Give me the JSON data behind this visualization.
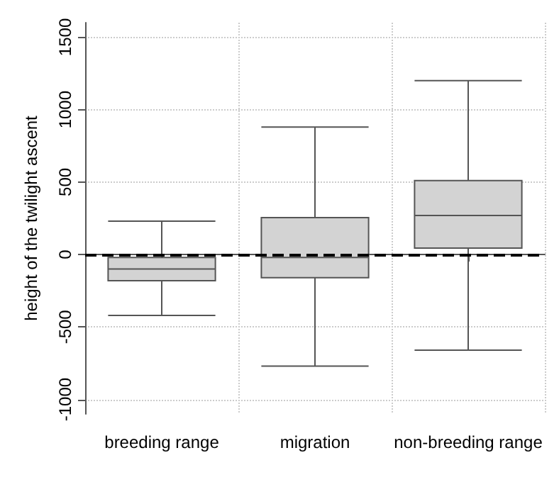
{
  "chart_data": {
    "type": "box",
    "ylabel": "height of the twilight ascent",
    "categories": [
      "breeding range",
      "migration",
      "non-breeding range"
    ],
    "boxes": [
      {
        "low": -420,
        "q1": -180,
        "median": -100,
        "q3": -20,
        "high": 230
      },
      {
        "low": -770,
        "q1": -160,
        "median": -20,
        "q3": 255,
        "high": 880
      },
      {
        "low": -660,
        "q1": 45,
        "median": 270,
        "q3": 510,
        "high": 1200
      }
    ],
    "color": "#d3d3d3",
    "ylim": [
      -1100,
      1600
    ],
    "yticks": [
      -1000,
      -500,
      0,
      500,
      1000,
      1500
    ],
    "grid": true,
    "ref_lines": [
      {
        "axis": "y",
        "value": 0,
        "color": "#000000",
        "line_style": "dashed"
      }
    ]
  }
}
